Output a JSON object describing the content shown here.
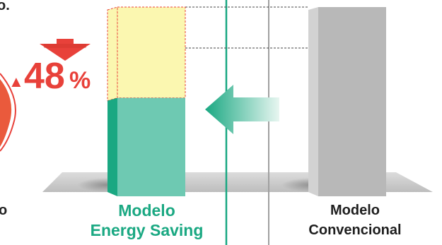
{
  "chart_data": {
    "type": "bar",
    "categories": [
      "Modelo Energy Saving",
      "Modelo Convencional"
    ],
    "values": [
      52,
      100
    ],
    "unit": "%",
    "reduction": {
      "sign": "▲",
      "value": "48",
      "unit": "%"
    },
    "ylim": [
      0,
      100
    ],
    "colors": {
      "energy_saving": "#6ec9b2",
      "energy_saving_side": "#1aa882",
      "saved_portion": "#fbf7b0",
      "saved_outline": "#e8413a",
      "conventional": "#b8b8b8",
      "conventional_side": "#d2d2d2",
      "accent_red": "#e8413a",
      "teal_line": "#1aa882",
      "gray_line": "#a0a0a0"
    }
  },
  "labels": {
    "energy_saving_line1": "Modelo",
    "energy_saving_line2": "Energy Saving",
    "conventional_line1": "Modelo",
    "conventional_line2": "Convencional"
  },
  "left_fragment": {
    "top_text": "o.",
    "bottom_text": "o"
  },
  "icons": {
    "down_arrow": "down-arrow-icon",
    "left_arrow": "left-arrow-icon"
  }
}
